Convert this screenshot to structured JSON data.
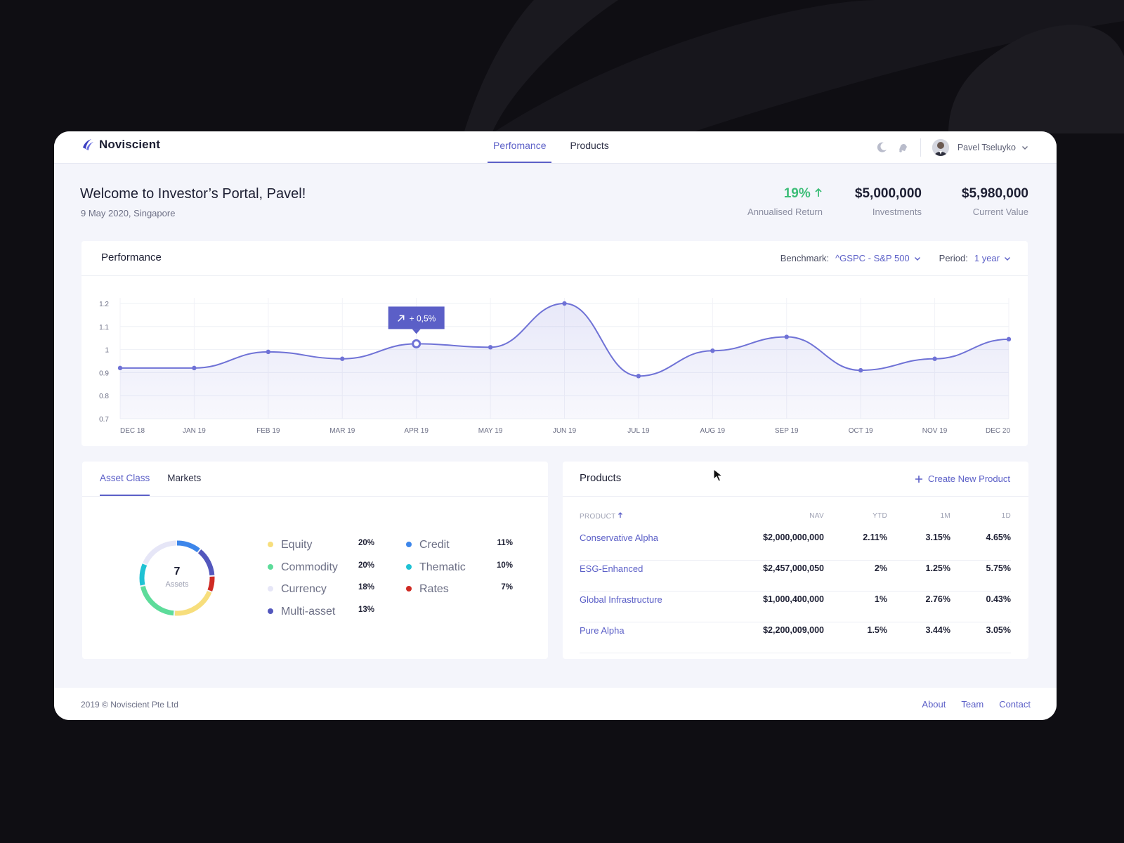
{
  "header": {
    "app_name": "Noviscient",
    "nav": [
      {
        "label": "Perfomance",
        "active": true
      },
      {
        "label": "Products",
        "active": false
      }
    ],
    "icons": [
      "moon-icon",
      "bell-icon"
    ],
    "user_name": "Pavel Tseluyko"
  },
  "welcome": {
    "title": "Welcome to Investor’s Portal, Pavel!",
    "subtitle": "9 May 2020, Singapore"
  },
  "stats": [
    {
      "value": "19%",
      "label": "Annualised Return",
      "trend": "up",
      "color": "#3dbd78"
    },
    {
      "value": "$5,000,000",
      "label": "Investments"
    },
    {
      "value": "$5,980,000",
      "label": "Current Value"
    }
  ],
  "performance": {
    "title": "Performance",
    "benchmark_label": "Benchmark:",
    "benchmark_value": "^GSPC - S&P 500",
    "period_label": "Period:",
    "period_value": "1 year"
  },
  "chart_data": {
    "type": "area",
    "title": "",
    "xlabel": "",
    "ylabel": "",
    "categories": [
      "DEC 18",
      "JAN 19",
      "FEB 19",
      "MAR 19",
      "APR 19",
      "MAY 19",
      "JUN 19",
      "JUL 19",
      "AUG 19",
      "SEP 19",
      "OCT 19",
      "NOV 19",
      "DEC 20"
    ],
    "values": [
      0.92,
      0.92,
      0.99,
      0.96,
      1.025,
      1.01,
      1.2,
      0.885,
      0.995,
      1.055,
      0.91,
      0.96,
      1.045
    ],
    "yticks": [
      0.7,
      0.8,
      0.9,
      1,
      1.1,
      1.2
    ],
    "ylim": [
      0.7,
      1.2
    ],
    "grid": true,
    "color": "#6f72d6",
    "highlight_index": 4,
    "tooltip": "+ 0,5%"
  },
  "assets": {
    "tabs": [
      {
        "label": "Asset Class",
        "active": true
      },
      {
        "label": "Markets",
        "active": false
      }
    ],
    "total": "7",
    "total_label": "Assets",
    "items": [
      {
        "name": "Equity",
        "value": "20%",
        "pct": 20,
        "color": "#f7de7c"
      },
      {
        "name": "Commodity",
        "value": "20%",
        "pct": 20,
        "color": "#5ddc9a"
      },
      {
        "name": "Currency",
        "value": "18%",
        "pct": 18,
        "color": "#e6e6f7"
      },
      {
        "name": "Multi-asset",
        "value": "13%",
        "pct": 13,
        "color": "#5357bd"
      },
      {
        "name": "Credit",
        "value": "11%",
        "pct": 11,
        "color": "#3d86ea"
      },
      {
        "name": "Thematic",
        "value": "10%",
        "pct": 10,
        "color": "#1fc2d4"
      },
      {
        "name": "Rates",
        "value": "7%",
        "pct": 7,
        "color": "#cf2a23"
      }
    ]
  },
  "products": {
    "title": "Products",
    "create_label": "Create New Product",
    "columns": [
      "PRODUCT",
      "NAV",
      "YTD",
      "1M",
      "1D"
    ],
    "rows": [
      {
        "name": "Conservative Alpha",
        "nav": "$2,000,000,000",
        "ytd": "2.11%",
        "m1": "3.15%",
        "d1": "4.65%"
      },
      {
        "name": "ESG-Enhanced",
        "nav": "$2,457,000,050",
        "ytd": "2%",
        "m1": "1.25%",
        "d1": "5.75%"
      },
      {
        "name": "Global Infrastructure",
        "nav": "$1,000,400,000",
        "ytd": "1%",
        "m1": "2.76%",
        "d1": "0.43%"
      },
      {
        "name": "Pure Alpha",
        "nav": "$2,200,009,000",
        "ytd": "1.5%",
        "m1": "3.44%",
        "d1": "3.05%"
      }
    ]
  },
  "footer": {
    "copyright": "2019 © Noviscient Pte Ltd",
    "links": [
      "About",
      "Team",
      "Contact"
    ]
  }
}
